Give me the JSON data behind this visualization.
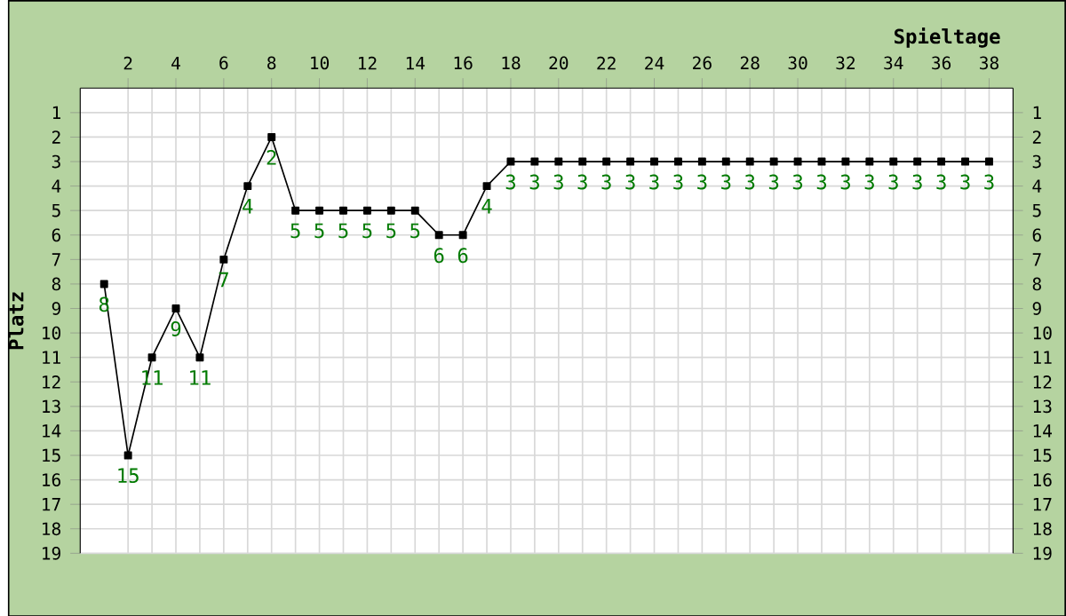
{
  "chart_data": {
    "type": "line",
    "xlabel": "Spieltage",
    "ylabel": "Platz",
    "x": [
      1,
      2,
      3,
      4,
      5,
      6,
      7,
      8,
      9,
      10,
      11,
      12,
      13,
      14,
      15,
      16,
      17,
      18,
      19,
      20,
      21,
      22,
      23,
      24,
      25,
      26,
      27,
      28,
      29,
      30,
      31,
      32,
      33,
      34,
      35,
      36,
      37,
      38
    ],
    "series": [
      {
        "color": "#000000",
        "values": [
          8,
          15,
          11,
          9,
          11,
          7,
          4,
          2,
          5,
          5,
          5,
          5,
          5,
          5,
          6,
          6,
          4,
          3,
          3,
          3,
          3,
          3,
          3,
          3,
          3,
          3,
          3,
          3,
          3,
          3,
          3,
          3,
          3,
          3,
          3,
          3,
          3,
          3
        ]
      }
    ],
    "data_labels": true,
    "marker": "square",
    "line_style": "solid",
    "grid": true,
    "xlim": [
      0,
      39
    ],
    "xticks": [
      2,
      4,
      6,
      8,
      10,
      12,
      14,
      16,
      18,
      20,
      22,
      24,
      26,
      28,
      30,
      32,
      34,
      36,
      38
    ],
    "ylim": [
      19,
      0
    ],
    "yticks": [
      1,
      2,
      3,
      4,
      5,
      6,
      7,
      8,
      9,
      10,
      11,
      12,
      13,
      14,
      15,
      16,
      17,
      18,
      19
    ],
    "y2lim": [
      19,
      0
    ],
    "y2ticks": [
      1,
      2,
      3,
      4,
      5,
      6,
      7,
      8,
      9,
      10,
      11,
      12,
      13,
      14,
      15,
      16,
      17,
      18,
      19
    ]
  }
}
